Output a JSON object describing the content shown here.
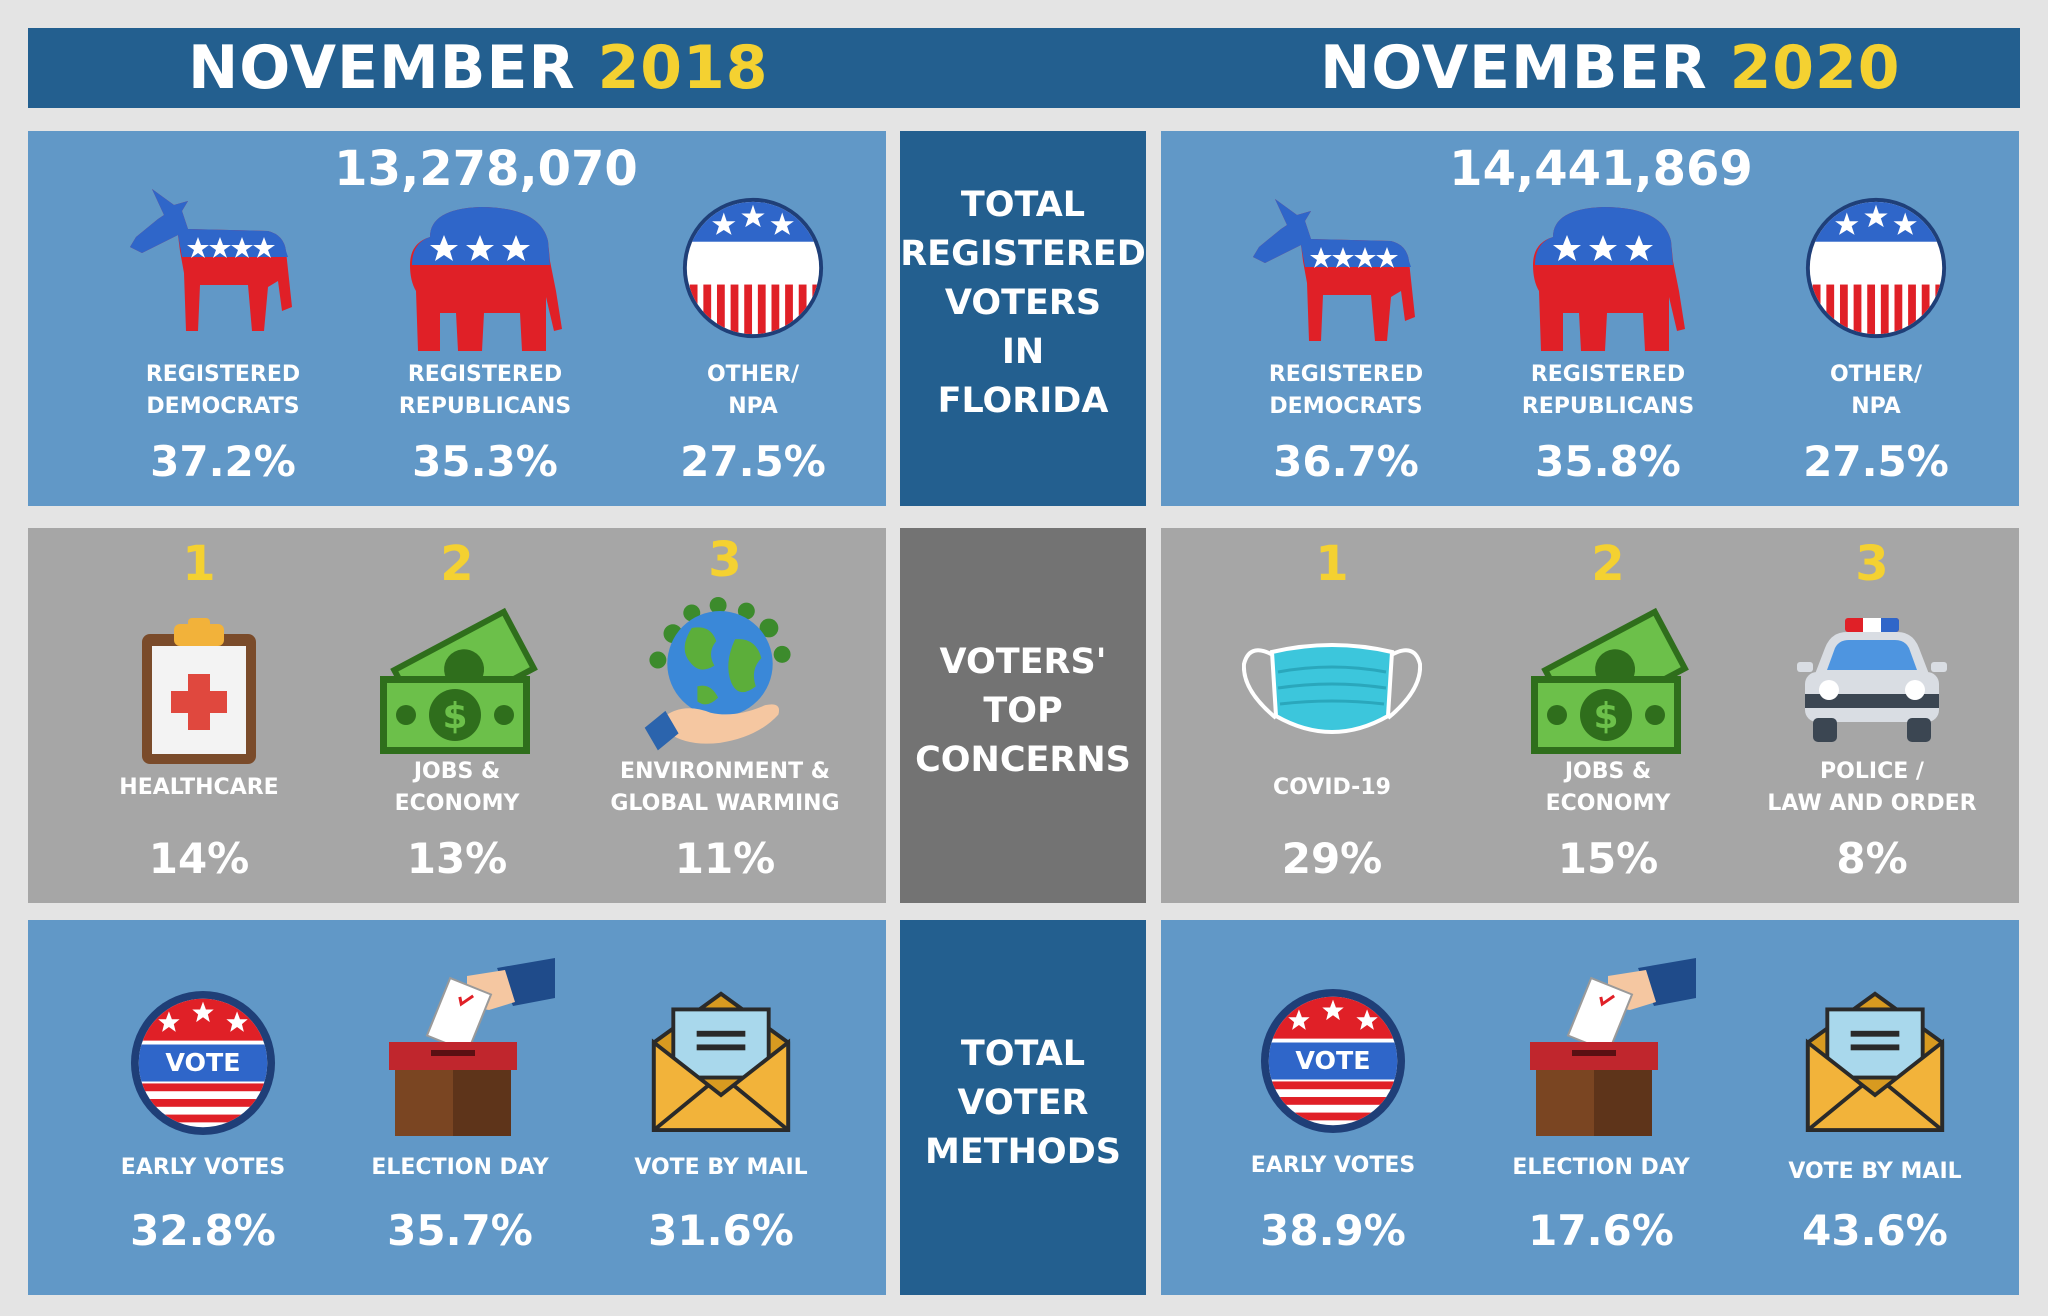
{
  "left": {
    "month": "NOVEMBER",
    "year": "2018",
    "total": "13,278,070",
    "registration": [
      {
        "label": "REGISTERED\nDEMOCRATS",
        "value": "37.2%"
      },
      {
        "label": "REGISTERED\nREPUBLICANS",
        "value": "35.3%"
      },
      {
        "label": "OTHER/\nNPA",
        "value": "27.5%"
      }
    ],
    "concerns": [
      {
        "rank": "1",
        "label": "HEALTHCARE",
        "value": "14%"
      },
      {
        "rank": "2",
        "label": "JOBS &\nECONOMY",
        "value": "13%"
      },
      {
        "rank": "3",
        "label": "ENVIRONMENT &\nGLOBAL WARMING",
        "value": "11%"
      }
    ],
    "methods": [
      {
        "label": "EARLY VOTES",
        "value": "32.8%"
      },
      {
        "label": "ELECTION DAY",
        "value": "35.7%"
      },
      {
        "label": "VOTE BY MAIL",
        "value": "31.6%"
      }
    ]
  },
  "right": {
    "month": "NOVEMBER",
    "year": "2020",
    "total": "14,441,869",
    "registration": [
      {
        "label": "REGISTERED\nDEMOCRATS",
        "value": "36.7%"
      },
      {
        "label": "REGISTERED\nREPUBLICANS",
        "value": "35.8%"
      },
      {
        "label": "OTHER/\nNPA",
        "value": "27.5%"
      }
    ],
    "concerns": [
      {
        "rank": "1",
        "label": "COVID-19",
        "value": "29%"
      },
      {
        "rank": "2",
        "label": "JOBS &\nECONOMY",
        "value": "15%"
      },
      {
        "rank": "3",
        "label": "POLICE /\nLAW AND ORDER",
        "value": "8%"
      }
    ],
    "methods": [
      {
        "label": "EARLY VOTES",
        "value": "38.9%"
      },
      {
        "label": "ELECTION DAY",
        "value": "17.6%"
      },
      {
        "label": "VOTE BY MAIL",
        "value": "43.6%"
      }
    ]
  },
  "middle": {
    "registered": "TOTAL\nREGISTERED\nVOTERS\nIN\nFLORIDA",
    "concerns": "VOTERS'\nTOP\nCONCERNS",
    "methods": "TOTAL\nVOTER\nMETHODS"
  },
  "icons": {
    "badge_text": "VOTE",
    "colors": {
      "red": "#e02027",
      "blue": "#2f66c9",
      "dark_blue": "#235f8f",
      "light_blue": "#6198c7",
      "gray": "#a6a6a6",
      "yellow": "#f4d131",
      "money_green": "#4e9a2e"
    }
  }
}
